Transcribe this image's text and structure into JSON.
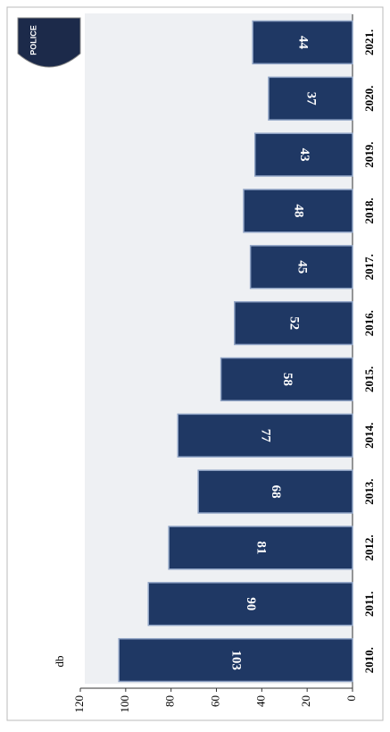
{
  "chart_data": {
    "type": "bar",
    "badge": "POLICE",
    "ylabel": "db",
    "categories": [
      "2010.",
      "2011.",
      "2012.",
      "2013.",
      "2014.",
      "2015.",
      "2016.",
      "2017.",
      "2018.",
      "2019.",
      "2020.",
      "2021."
    ],
    "values": [
      103,
      90,
      81,
      68,
      77,
      58,
      52,
      45,
      48,
      43,
      37,
      44
    ],
    "color": "#1f3864",
    "ylim": [
      0,
      120
    ],
    "yticks": [
      0,
      20,
      40,
      60,
      80,
      100,
      120
    ]
  }
}
